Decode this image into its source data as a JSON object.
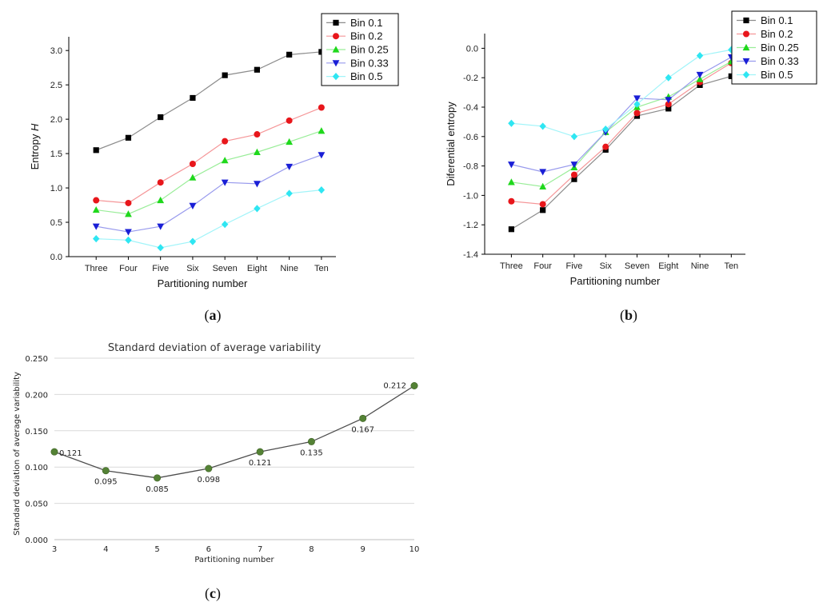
{
  "chart_data": [
    {
      "type": "line",
      "panel": "a",
      "caption_open": "(",
      "caption_letter": "a",
      "caption_close": ")",
      "xlabel": "Partitioning number",
      "ylabel_main": "Entropy ",
      "ylabel_italic": "H",
      "categories": [
        "Three",
        "Four",
        "Five",
        "Six",
        "Seven",
        "Eight",
        "Nine",
        "Ten"
      ],
      "ylim": [
        0.0,
        3.2
      ],
      "yticks": [
        "0.0",
        "0.5",
        "1.0",
        "1.5",
        "2.0",
        "2.5",
        "3.0"
      ],
      "ytick_values": [
        0.0,
        0.5,
        1.0,
        1.5,
        2.0,
        2.5,
        3.0
      ],
      "legend_position": "top-right",
      "series": [
        {
          "name": "Bin 0.1",
          "color": "#000000",
          "marker": "square",
          "values": [
            1.55,
            1.73,
            2.03,
            2.31,
            2.64,
            2.72,
            2.94,
            2.98
          ]
        },
        {
          "name": "Bin 0.2",
          "color": "#e8161b",
          "marker": "circle",
          "values": [
            0.82,
            0.78,
            1.08,
            1.35,
            1.68,
            1.78,
            1.98,
            2.17
          ]
        },
        {
          "name": "Bin 0.25",
          "color": "#1fd81c",
          "marker": "triangle-up",
          "values": [
            0.68,
            0.62,
            0.82,
            1.15,
            1.4,
            1.52,
            1.67,
            1.83
          ]
        },
        {
          "name": "Bin 0.33",
          "color": "#1a1fd6",
          "marker": "triangle-down",
          "values": [
            0.44,
            0.36,
            0.44,
            0.74,
            1.08,
            1.06,
            1.31,
            1.48
          ]
        },
        {
          "name": "Bin 0.5",
          "color": "#2fe6f2",
          "marker": "diamond",
          "values": [
            0.26,
            0.24,
            0.13,
            0.22,
            0.47,
            0.7,
            0.92,
            0.97
          ]
        }
      ]
    },
    {
      "type": "line",
      "panel": "b",
      "caption_open": "(",
      "caption_letter": "b",
      "caption_close": ")",
      "xlabel": "Partitioning number",
      "ylabel": "Diferential entropy",
      "categories": [
        "Three",
        "Four",
        "Five",
        "Six",
        "Seven",
        "Eight",
        "Nine",
        "Ten"
      ],
      "ylim": [
        -1.4,
        0.1
      ],
      "yticks": [
        "0.0",
        "-0.2",
        "-0.4",
        "-0.6",
        "-0.8",
        "-1.0",
        "-1.2",
        "-1.4"
      ],
      "ytick_values": [
        0.0,
        -0.2,
        -0.4,
        -0.6,
        -0.8,
        -1.0,
        -1.2,
        -1.4
      ],
      "legend_position": "top-right",
      "series": [
        {
          "name": "Bin 0.1",
          "color": "#000000",
          "marker": "square",
          "values": [
            -1.23,
            -1.1,
            -0.89,
            -0.69,
            -0.46,
            -0.41,
            -0.25,
            -0.19
          ]
        },
        {
          "name": "Bin 0.2",
          "color": "#e8161b",
          "marker": "circle",
          "values": [
            -1.04,
            -1.06,
            -0.86,
            -0.67,
            -0.44,
            -0.38,
            -0.23,
            -0.1
          ]
        },
        {
          "name": "Bin 0.25",
          "color": "#1fd81c",
          "marker": "triangle-up",
          "values": [
            -0.91,
            -0.94,
            -0.81,
            -0.57,
            -0.4,
            -0.33,
            -0.21,
            -0.09
          ]
        },
        {
          "name": "Bin 0.33",
          "color": "#1a1fd6",
          "marker": "triangle-down",
          "values": [
            -0.79,
            -0.84,
            -0.79,
            -0.57,
            -0.34,
            -0.35,
            -0.18,
            -0.06
          ]
        },
        {
          "name": "Bin 0.5",
          "color": "#2fe6f2",
          "marker": "diamond",
          "values": [
            -0.51,
            -0.53,
            -0.6,
            -0.55,
            -0.38,
            -0.2,
            -0.05,
            -0.01
          ]
        }
      ]
    },
    {
      "type": "line",
      "panel": "c",
      "caption_open": "(",
      "caption_letter": "c",
      "caption_close": ")",
      "title": "Standard deviation of average variability",
      "xlabel": "Partitioning number",
      "ylabel": "Standard deviation of average variability",
      "x": [
        3,
        4,
        5,
        6,
        7,
        8,
        9,
        10
      ],
      "xticks": [
        "3",
        "4",
        "5",
        "6",
        "7",
        "8",
        "9",
        "10"
      ],
      "ylim": [
        0.0,
        0.25
      ],
      "yticks": [
        "0.000",
        "0.050",
        "0.100",
        "0.150",
        "0.200",
        "0.250"
      ],
      "ytick_values": [
        0.0,
        0.05,
        0.1,
        0.15,
        0.2,
        0.25
      ],
      "grid": true,
      "line_color": "#4d4d4d",
      "marker_color": "#548235",
      "series": [
        {
          "name": "Standard deviation of average variability",
          "values": [
            0.121,
            0.095,
            0.085,
            0.098,
            0.121,
            0.135,
            0.167,
            0.212
          ],
          "labels": [
            "0.121",
            "0.095",
            "0.085",
            "0.098",
            "0.121",
            "0.135",
            "0.167",
            "0.212"
          ]
        }
      ]
    }
  ]
}
